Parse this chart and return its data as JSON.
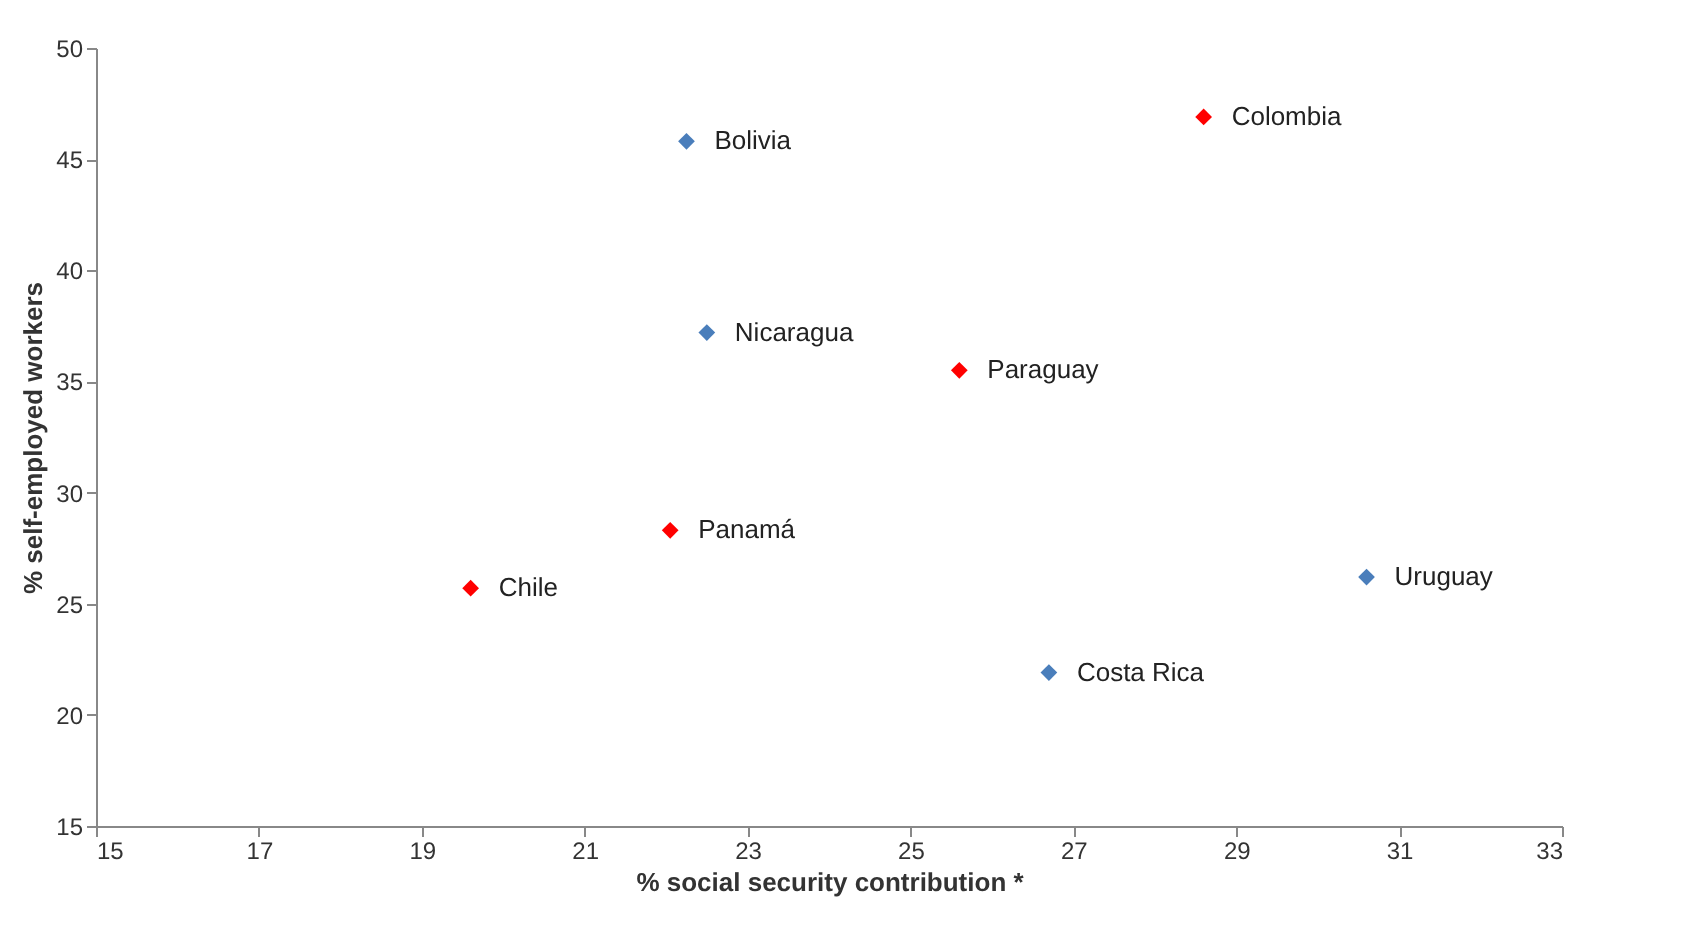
{
  "chart_data": {
    "type": "scatter",
    "xlabel": "% social security contribution *",
    "ylabel": "% self-employed workers",
    "xlim": [
      15,
      33
    ],
    "xticks": [
      15,
      17,
      19,
      21,
      23,
      25,
      27,
      29,
      31,
      33
    ],
    "ylim": [
      15,
      50
    ],
    "yticks": [
      15,
      20,
      25,
      30,
      35,
      40,
      45,
      50
    ],
    "grid": false,
    "marker": "diamond",
    "series": [
      {
        "color": "#4a7ebb",
        "x": [
          22.25,
          22.5,
          30.6,
          26.7
        ],
        "values": [
          45.8,
          37.2,
          26.2,
          21.9
        ]
      },
      {
        "color": "#ff0000",
        "x": [
          28.6,
          25.6,
          22.05,
          19.6
        ],
        "values": [
          46.9,
          35.5,
          28.3,
          25.7
        ]
      }
    ],
    "annotations": [
      {
        "text": "Bolivia",
        "x": 22.25,
        "y": 45.8
      },
      {
        "text": "Nicaragua",
        "x": 22.5,
        "y": 37.2
      },
      {
        "text": "Uruguay",
        "x": 30.6,
        "y": 26.2
      },
      {
        "text": "Costa Rica",
        "x": 26.7,
        "y": 21.9
      },
      {
        "text": "Colombia",
        "x": 28.6,
        "y": 46.9
      },
      {
        "text": "Paraguay",
        "x": 25.6,
        "y": 35.5
      },
      {
        "text": "Panamá",
        "x": 22.05,
        "y": 28.3
      },
      {
        "text": "Chile",
        "x": 19.6,
        "y": 25.7
      }
    ]
  }
}
